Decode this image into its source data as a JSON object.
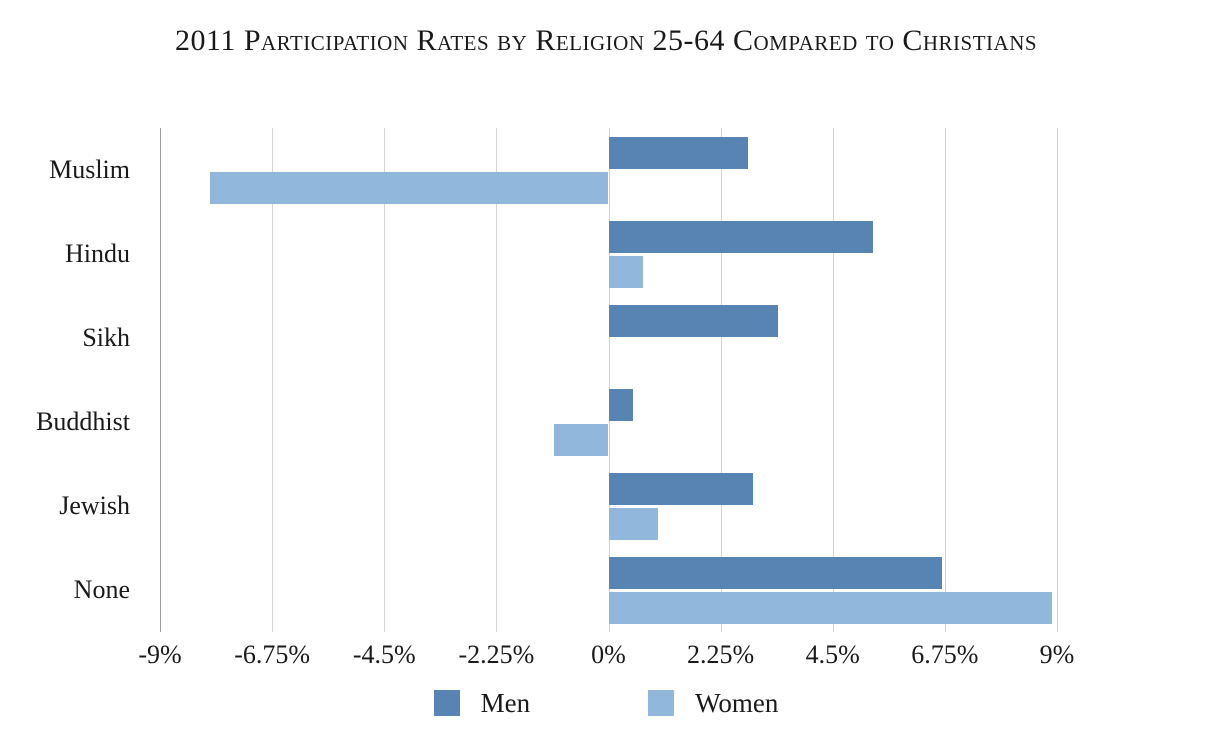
{
  "chart_data": {
    "type": "bar",
    "orientation": "horizontal",
    "title": "2011 Participation Rates by Religion 25-64 Compared to Christians",
    "categories": [
      "Muslim",
      "Hindu",
      "Sikh",
      "Buddhist",
      "Jewish",
      "None"
    ],
    "series": [
      {
        "name": "Men",
        "color": "#5884b4",
        "values": [
          2.8,
          5.3,
          3.4,
          0.5,
          2.9,
          6.7
        ]
      },
      {
        "name": "Women",
        "color": "#92b7dc",
        "values": [
          -8.0,
          0.7,
          0,
          -1.1,
          1.0,
          8.9
        ]
      }
    ],
    "x_ticks": [
      {
        "label": "-9%",
        "value": -9
      },
      {
        "label": "-6.75%",
        "value": -6.75
      },
      {
        "label": "-4.5%",
        "value": -4.5
      },
      {
        "label": "-2.25%",
        "value": -2.25
      },
      {
        "label": "0%",
        "value": 0
      },
      {
        "label": "2.25%",
        "value": 2.25
      },
      {
        "label": "4.5%",
        "value": 4.5
      },
      {
        "label": "6.75%",
        "value": 6.75
      },
      {
        "label": "9%",
        "value": 9
      }
    ],
    "xlim": [
      -9,
      9
    ],
    "unit": "%",
    "grid": "vertical",
    "legend_position": "bottom"
  },
  "colors": {
    "men": "#5884b4",
    "women": "#92b7dc",
    "gridline": "#d4d4d4",
    "axis_line": "#9e9e9e",
    "text": "#1a1a1a",
    "background": "#ffffff"
  },
  "legend": {
    "items": [
      {
        "label": "Men",
        "color": "#5884b4"
      },
      {
        "label": "Women",
        "color": "#92b7dc"
      }
    ]
  }
}
